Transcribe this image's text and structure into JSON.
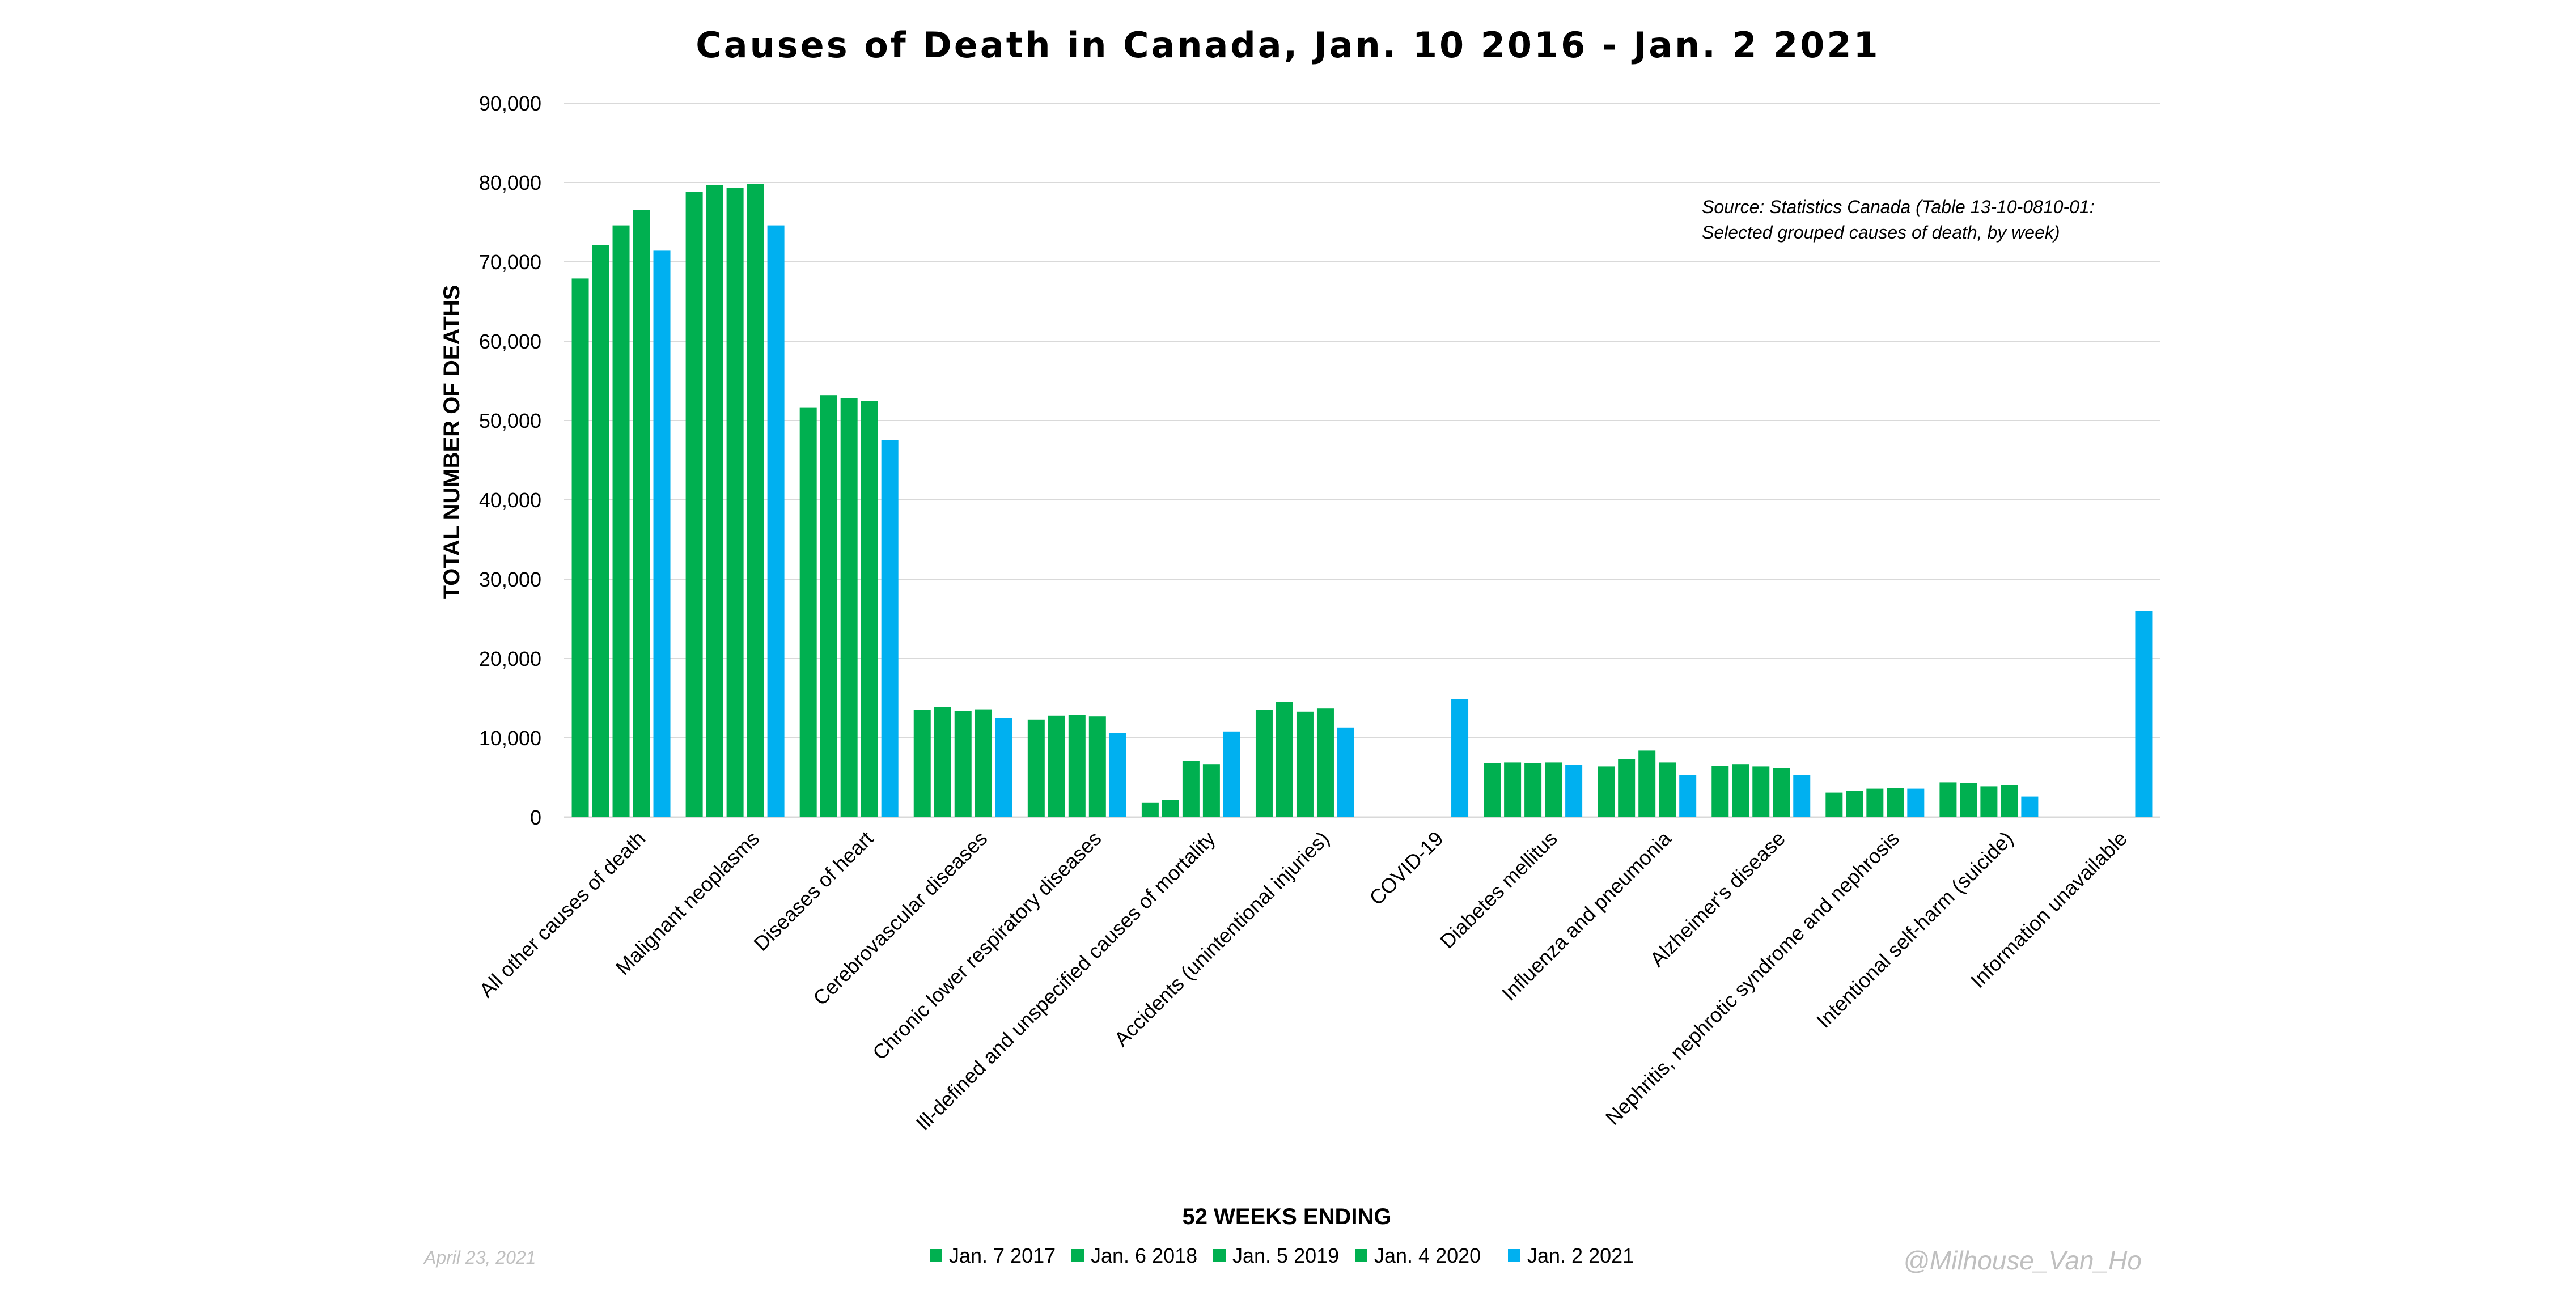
{
  "chart_data": {
    "type": "bar",
    "title": "Causes of Death in Canada, Jan. 10 2016 - Jan. 2 2021",
    "ylabel": "TOTAL NUMBER OF DEATHS",
    "xlabel": "52 WEEKS ENDING",
    "ylim": [
      0,
      90000
    ],
    "yticks": [
      "0",
      "10,000",
      "20,000",
      "30,000",
      "40,000",
      "50,000",
      "60,000",
      "70,000",
      "80,000",
      "90,000"
    ],
    "grid": true,
    "legend_position": "bottom",
    "categories": [
      "All other causes of death",
      "Malignant neoplasms",
      "Diseases of heart",
      "Cerebrovascular diseases",
      "Chronic lower respiratory diseases",
      "Ill-defined and unspecified causes of mortality",
      "Accidents (unintentional injuries)",
      "COVID-19",
      "Diabetes mellitus",
      "Influenza and pneumonia",
      "Alzheimer's disease",
      "Nephritis, nephrotic syndrome and nephrosis",
      "Intentional self-harm (suicide)",
      "Information unavailable"
    ],
    "series": [
      {
        "name": "Jan. 7 2017",
        "color": "#00b050",
        "values": [
          67900,
          78800,
          51600,
          13500,
          12300,
          1800,
          13500,
          0,
          6800,
          6400,
          6500,
          3100,
          4400,
          0
        ]
      },
      {
        "name": "Jan. 6 2018",
        "color": "#00b050",
        "values": [
          72100,
          79700,
          53200,
          13900,
          12800,
          2200,
          14500,
          0,
          6900,
          7300,
          6700,
          3300,
          4300,
          0
        ]
      },
      {
        "name": "Jan. 5 2019",
        "color": "#00b050",
        "values": [
          74600,
          79300,
          52800,
          13400,
          12900,
          7100,
          13300,
          0,
          6800,
          8400,
          6400,
          3600,
          3900,
          0
        ]
      },
      {
        "name": "Jan. 4 2020",
        "color": "#00b050",
        "values": [
          76500,
          79800,
          52500,
          13600,
          12700,
          6700,
          13700,
          0,
          6900,
          6900,
          6200,
          3700,
          4000,
          0
        ]
      },
      {
        "name": "Jan. 2 2021",
        "color": "#00b0f0",
        "values": [
          71400,
          74600,
          47500,
          12500,
          10600,
          10800,
          11300,
          14900,
          6600,
          5300,
          5300,
          3600,
          2600,
          26000
        ]
      }
    ],
    "annotation": [
      "Source: Statistics Canada (Table 13-10-0810-01:",
      "Selected grouped causes of death, by week)"
    ]
  },
  "footer": {
    "date": "April 23, 2021",
    "handle": "@Milhouse_Van_Ho"
  }
}
